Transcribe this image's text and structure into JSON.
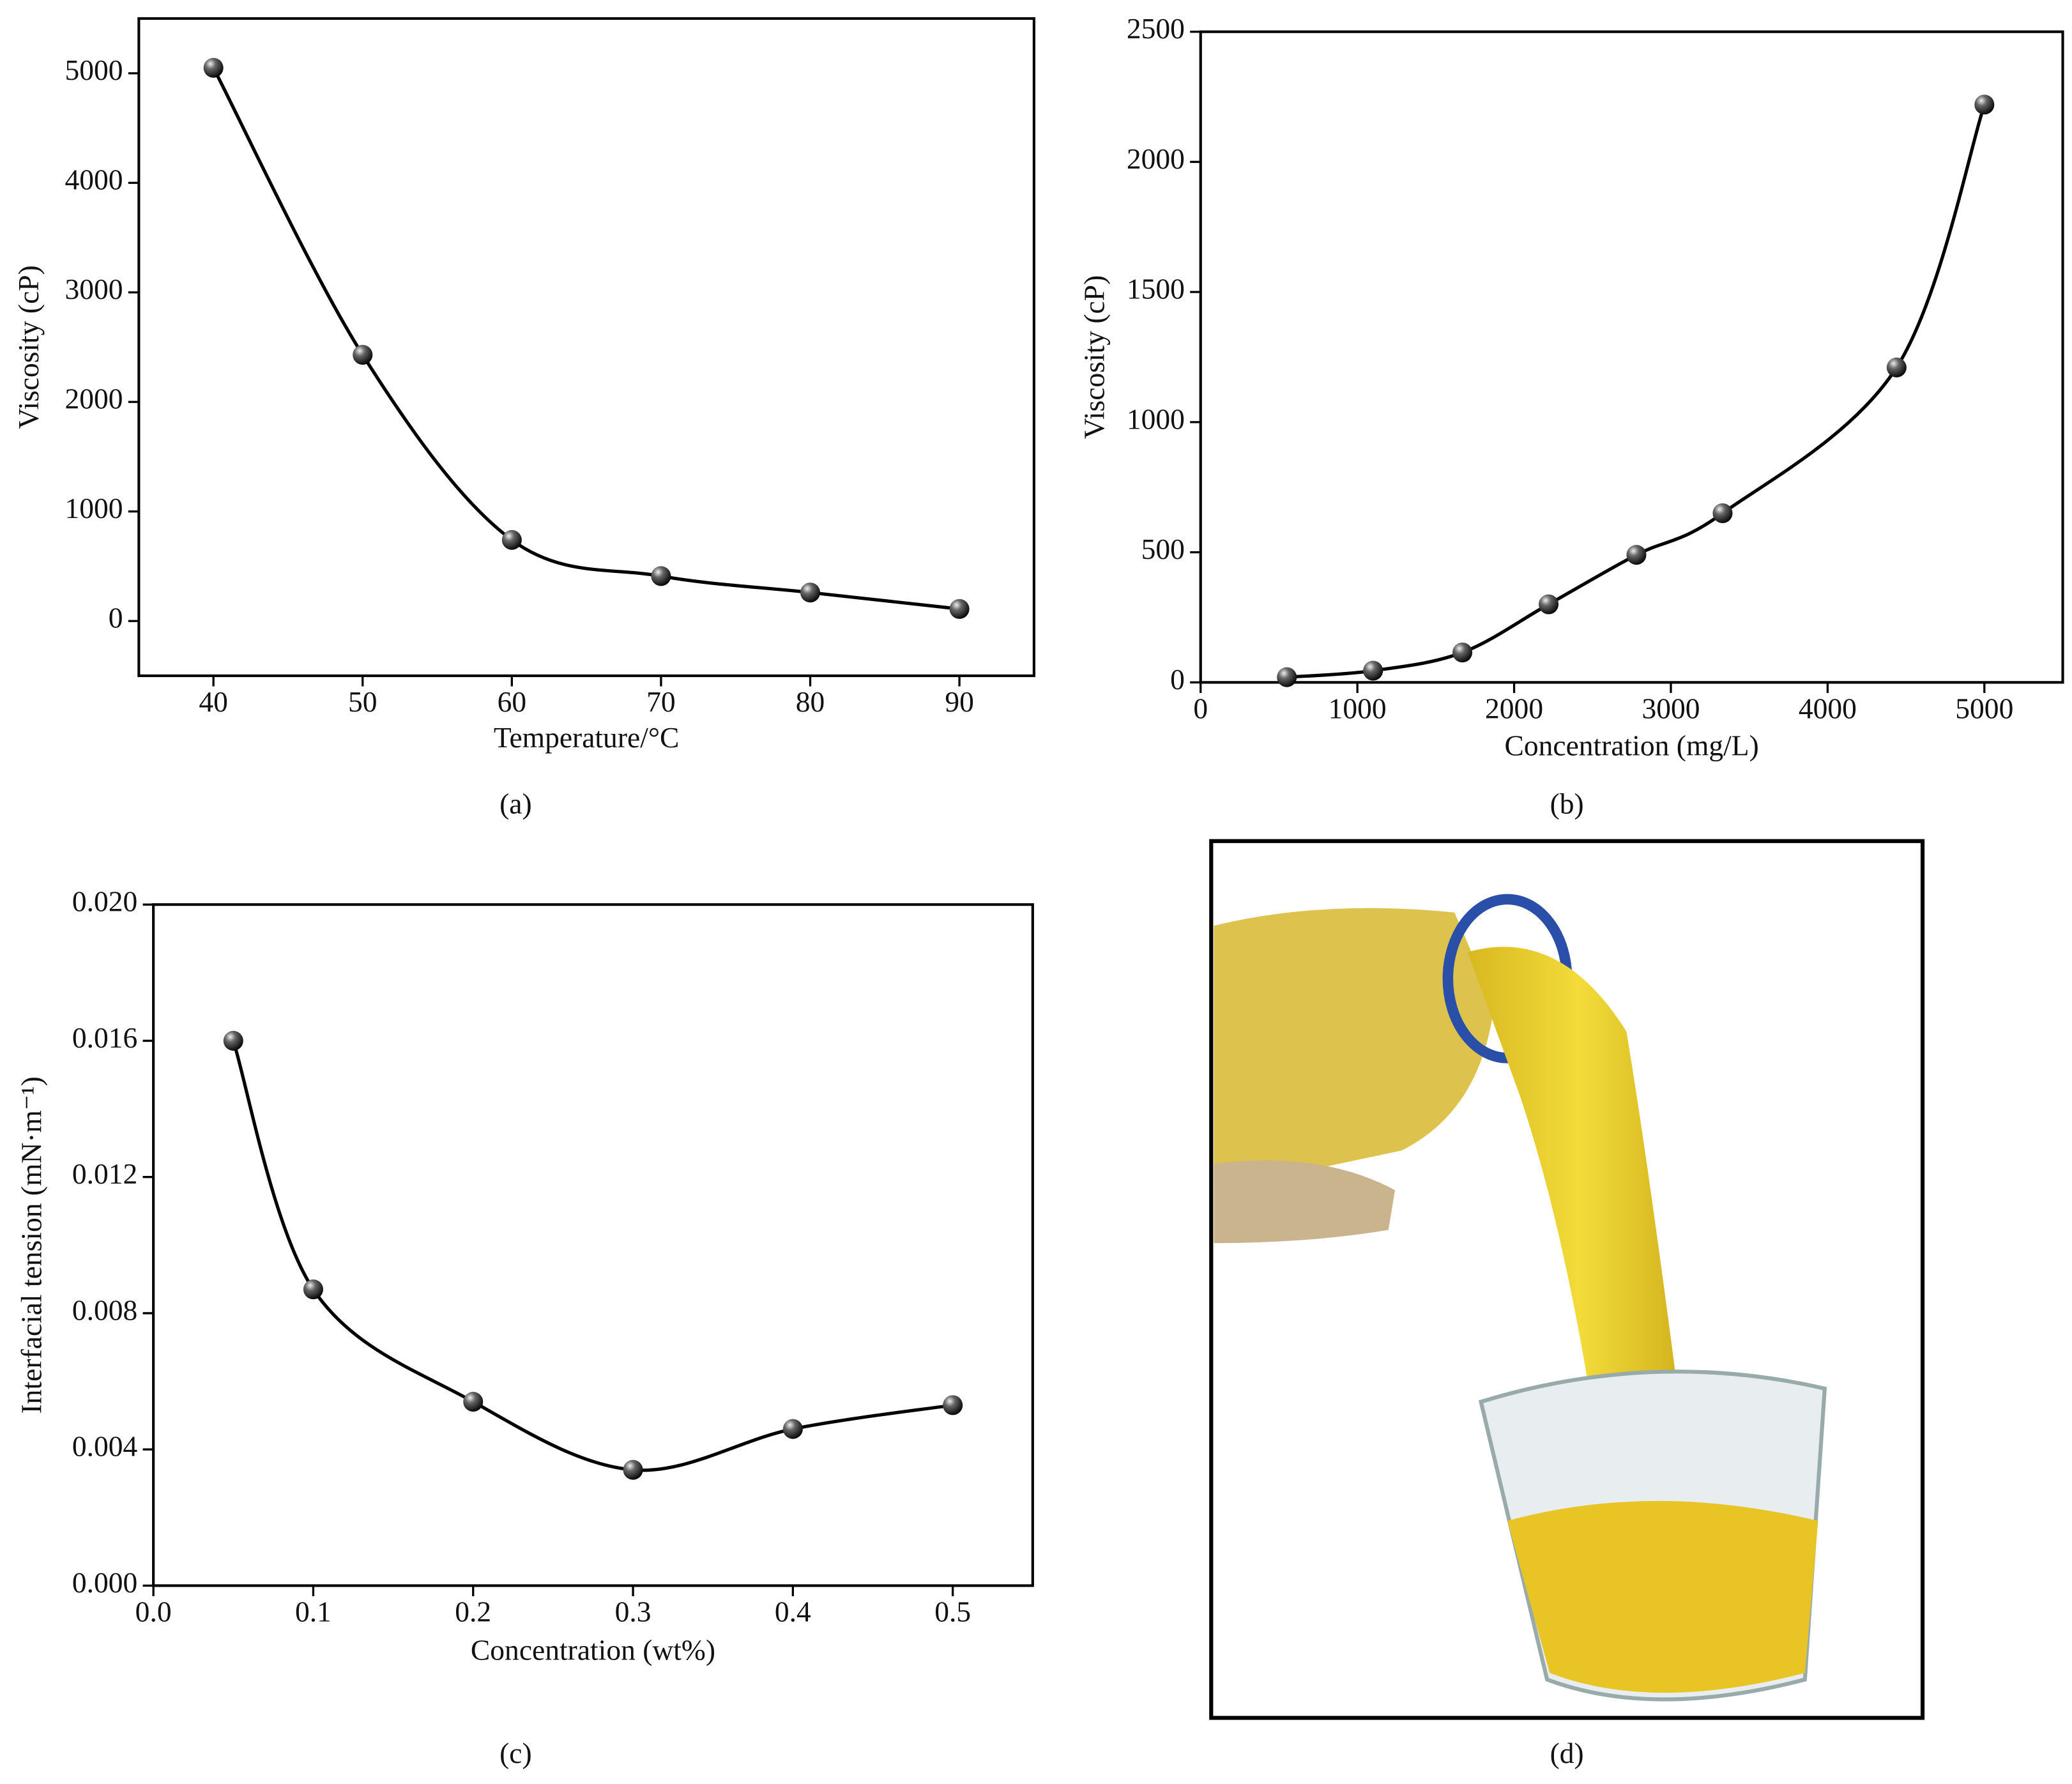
{
  "chart_data": [
    {
      "type": "line",
      "caption": "(a)",
      "x_label": "Temperature/°C",
      "y_label": "Viscosity (cP)",
      "x": [
        40,
        50,
        60,
        70,
        80,
        90
      ],
      "series": [
        {
          "values": [
            5050,
            2430,
            740,
            410,
            260,
            110
          ],
          "color": "#000000"
        }
      ],
      "xlim": [
        35,
        95
      ],
      "ylim": [
        -500,
        5500
      ],
      "xticks": [
        40,
        50,
        60,
        70,
        80,
        90
      ],
      "yticks": [
        0,
        1000,
        2000,
        3000,
        4000,
        5000
      ]
    },
    {
      "type": "line",
      "caption": "(b)",
      "x_label": "Concentration (mg/L)",
      "y_label": "Viscosity (cP)",
      "x": [
        550,
        1100,
        1670,
        2220,
        2780,
        3330,
        4440,
        5000
      ],
      "series": [
        {
          "values": [
            20,
            45,
            115,
            300,
            490,
            650,
            1210,
            2220
          ],
          "color": "#000000"
        }
      ],
      "xlim": [
        0,
        5500
      ],
      "ylim": [
        0,
        2500
      ],
      "xticks": [
        0,
        1000,
        2000,
        3000,
        4000,
        5000
      ],
      "yticks": [
        0,
        500,
        1000,
        1500,
        2000,
        2500
      ]
    },
    {
      "type": "line",
      "caption": "(c)",
      "x_label": "Concentration (wt%)",
      "y_label": "Interfacial tension (mN·m⁻¹)",
      "x": [
        0.05,
        0.1,
        0.2,
        0.3,
        0.4,
        0.5
      ],
      "series": [
        {
          "values": [
            0.016,
            0.0087,
            0.0054,
            0.0034,
            0.0046,
            0.0053
          ],
          "color": "#000000"
        }
      ],
      "xlim": [
        0,
        0.55
      ],
      "ylim": [
        0,
        0.02
      ],
      "xticks": [
        {
          "value": 0,
          "label": "0.0"
        },
        0.1,
        0.2,
        0.3,
        0.4,
        0.5
      ],
      "yticks": [
        {
          "value": 0,
          "label": "0.000"
        },
        0.004,
        0.008,
        0.012,
        0.016,
        {
          "value": 0.02,
          "label": "0.020"
        }
      ]
    }
  ],
  "image_panel": {
    "caption": "(d)"
  }
}
